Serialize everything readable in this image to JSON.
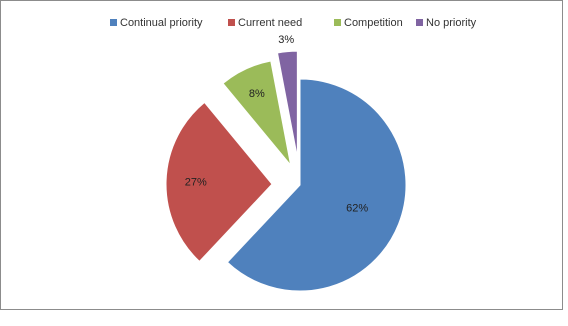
{
  "chart_data": {
    "type": "pie",
    "title": "",
    "categories": [
      "Continual priority",
      "Current need",
      "Competition",
      "No priority"
    ],
    "values": [
      62,
      27,
      8,
      3
    ],
    "labels": [
      "62%",
      "27%",
      "8%",
      "3%"
    ],
    "colors": [
      "#4F81BD",
      "#C0504D",
      "#9BBB59",
      "#8064A2"
    ],
    "legend_position": "top",
    "exploded": true
  }
}
